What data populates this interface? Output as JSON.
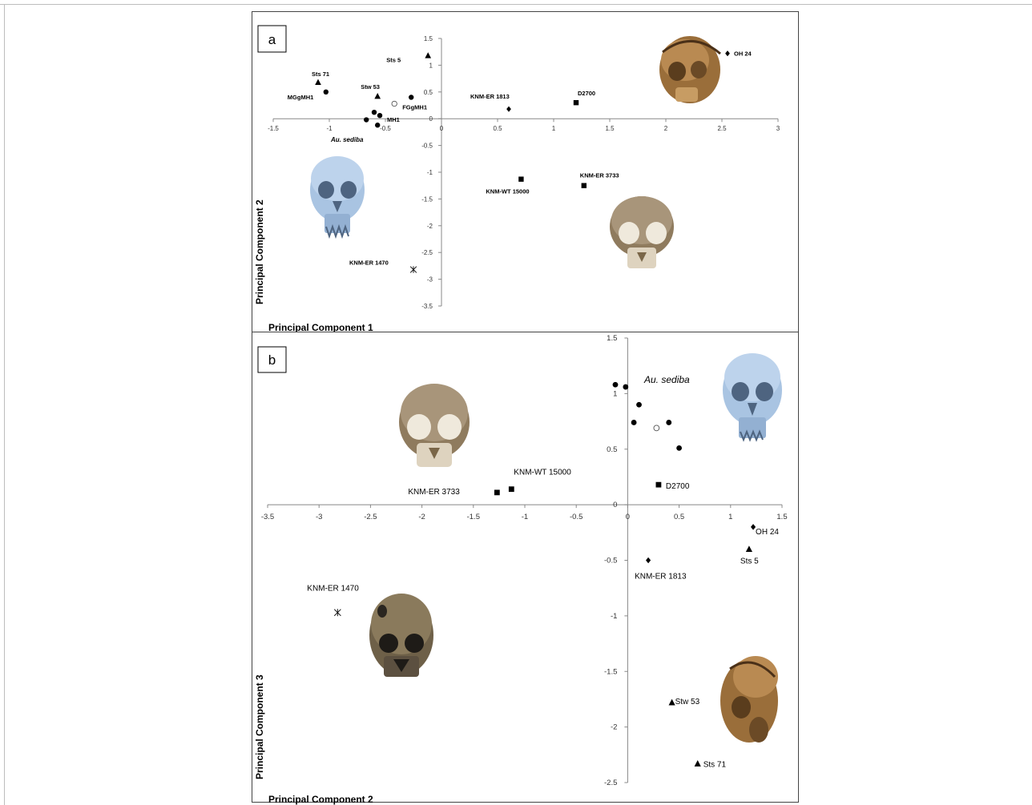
{
  "chart_data": [
    {
      "type": "scatter",
      "panel_label": "a",
      "xlabel": "Principal Component 1",
      "ylabel": "Principal Component 2",
      "xlim": [
        -1.5,
        3
      ],
      "ylim": [
        -3.5,
        1.5
      ],
      "xticks": [
        "-1.5",
        "-1",
        "-0.5",
        "0",
        "0.5",
        "1",
        "1.5",
        "2",
        "2.5",
        "3"
      ],
      "yticks": [
        "1.5",
        "1",
        "0.5",
        "0",
        "-0.5",
        "-1",
        "-1.5",
        "-2",
        "-2.5",
        "-3",
        "-3.5"
      ],
      "grid": false,
      "legend": "none",
      "points": [
        {
          "label": "Sts 5",
          "x": -0.12,
          "y": 1.18,
          "marker": "triangle"
        },
        {
          "label": "Sts 71",
          "x": -1.1,
          "y": 0.68,
          "marker": "triangle"
        },
        {
          "label": "Stw 53",
          "x": -0.57,
          "y": 0.42,
          "marker": "triangle"
        },
        {
          "label": "MGgMH1",
          "x": -1.03,
          "y": 0.5,
          "marker": "circle"
        },
        {
          "label": "FGgMH1",
          "x": -0.42,
          "y": 0.28,
          "marker": "open-circle"
        },
        {
          "label": "",
          "x": -0.27,
          "y": 0.4,
          "marker": "circle"
        },
        {
          "label": "MH1",
          "x": -0.6,
          "y": 0.12,
          "marker": "circle"
        },
        {
          "label": "",
          "x": -0.55,
          "y": 0.06,
          "marker": "circle"
        },
        {
          "label": "",
          "x": -0.67,
          "y": -0.02,
          "marker": "circle"
        },
        {
          "label": "",
          "x": -0.57,
          "y": -0.12,
          "marker": "circle"
        },
        {
          "label": "KNM-ER 1813",
          "x": 0.6,
          "y": 0.18,
          "marker": "diamond"
        },
        {
          "label": "D2700",
          "x": 1.2,
          "y": 0.3,
          "marker": "square"
        },
        {
          "label": "OH 24",
          "x": 2.55,
          "y": 1.22,
          "marker": "diamond"
        },
        {
          "label": "KNM-WT 15000",
          "x": 0.71,
          "y": -1.13,
          "marker": "square"
        },
        {
          "label": "KNM-ER 3733",
          "x": 1.27,
          "y": -1.25,
          "marker": "square"
        },
        {
          "label": "KNM-ER 1470",
          "x": -0.25,
          "y": -2.82,
          "marker": "asterisk"
        }
      ],
      "annotations": [
        "Au. sediba"
      ]
    },
    {
      "type": "scatter",
      "panel_label": "b",
      "xlabel": "Principal Component 2",
      "ylabel": "Principal Component 3",
      "xlim": [
        -3.5,
        1.5
      ],
      "ylim": [
        -2.5,
        1.5
      ],
      "xticks": [
        "-3.5",
        "-3",
        "-2.5",
        "-2",
        "-1.5",
        "-1",
        "-0.5",
        "0",
        "0.5",
        "1",
        "1.5"
      ],
      "yticks": [
        "1.5",
        "1",
        "0.5",
        "0",
        "-0.5",
        "-1",
        "-1.5",
        "-2",
        "-2.5"
      ],
      "grid": false,
      "legend": "none",
      "points": [
        {
          "label": "",
          "x": -0.12,
          "y": 1.08,
          "marker": "circle"
        },
        {
          "label": "",
          "x": -0.02,
          "y": 1.06,
          "marker": "circle"
        },
        {
          "label": "",
          "x": 0.11,
          "y": 0.9,
          "marker": "circle"
        },
        {
          "label": "",
          "x": 0.06,
          "y": 0.74,
          "marker": "circle"
        },
        {
          "label": "",
          "x": 0.4,
          "y": 0.74,
          "marker": "circle"
        },
        {
          "label": "",
          "x": 0.28,
          "y": 0.69,
          "marker": "open-circle"
        },
        {
          "label": "",
          "x": 0.5,
          "y": 0.51,
          "marker": "circle"
        },
        {
          "label": "D2700",
          "x": 0.3,
          "y": 0.18,
          "marker": "square"
        },
        {
          "label": "KNM-WT 15000",
          "x": -1.13,
          "y": 0.14,
          "marker": "square"
        },
        {
          "label": "KNM-ER 3733",
          "x": -1.27,
          "y": 0.11,
          "marker": "square"
        },
        {
          "label": "OH 24",
          "x": 1.22,
          "y": -0.2,
          "marker": "diamond"
        },
        {
          "label": "Sts 5",
          "x": 1.18,
          "y": -0.4,
          "marker": "triangle"
        },
        {
          "label": "KNM-ER 1813",
          "x": 0.2,
          "y": -0.5,
          "marker": "diamond"
        },
        {
          "label": "KNM-ER 1470",
          "x": -2.82,
          "y": -0.97,
          "marker": "asterisk"
        },
        {
          "label": "Stw 53",
          "x": 0.43,
          "y": -1.78,
          "marker": "triangle"
        },
        {
          "label": "Sts 71",
          "x": 0.68,
          "y": -2.33,
          "marker": "triangle"
        }
      ],
      "annotations": [
        "Au. sediba"
      ]
    }
  ],
  "images": {
    "skull_colors": {
      "fossil": "#b08a5a",
      "fossil_dark": "#6b4f2e",
      "sediba": "#a9c4e2",
      "light": "#e8e0cf"
    }
  }
}
